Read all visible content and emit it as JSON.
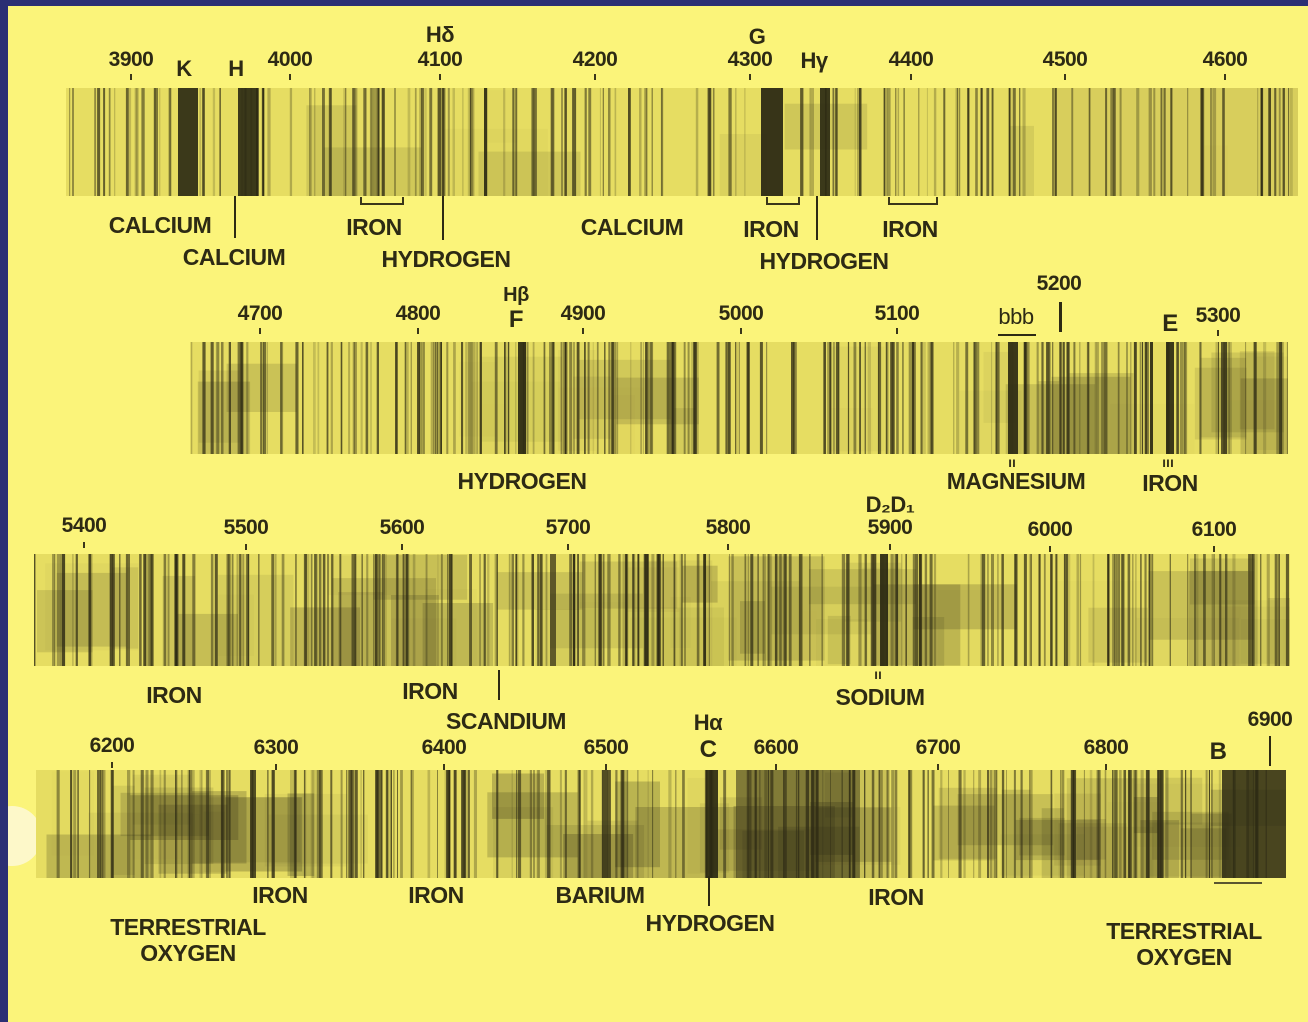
{
  "colors": {
    "frame": "#2b2f74",
    "paper": "#fbf47a",
    "strip_base": "#e6dd62",
    "ink": "#2d2a14"
  },
  "rows": [
    {
      "wavelengths": [
        "3900",
        "4000",
        "4100",
        "4200",
        "4300",
        "4400",
        "4500",
        "4600"
      ],
      "line_labels": {
        "K": "K",
        "H": "H",
        "Hd": "Hδ",
        "G": "G",
        "Hg": "Hγ"
      },
      "elements": {
        "calcium_1": "CALCIUM",
        "calcium_2": "CALCIUM",
        "iron_1": "IRON",
        "hydrogen_1": "HYDROGEN",
        "calcium_3": "CALCIUM",
        "iron_2": "IRON",
        "hydrogen_2": "HYDROGEN",
        "iron_3": "IRON"
      }
    },
    {
      "wavelengths": [
        "4700",
        "4800",
        "4900",
        "5000",
        "5100",
        "5200",
        "5300"
      ],
      "line_labels": {
        "Hb": "Hβ",
        "F": "F",
        "bbb": "bbb",
        "E": "E"
      },
      "elements": {
        "hydrogen": "HYDROGEN",
        "magnesium": "MAGNESIUM",
        "iron": "IRON"
      }
    },
    {
      "wavelengths": [
        "5400",
        "5500",
        "5600",
        "5700",
        "5800",
        "5900",
        "6000",
        "6100"
      ],
      "line_labels": {
        "D": "D₂D₁"
      },
      "elements": {
        "iron_1": "IRON",
        "iron_2": "IRON",
        "scandium": "SCANDIUM",
        "sodium": "SODIUM"
      }
    },
    {
      "wavelengths": [
        "6200",
        "6300",
        "6400",
        "6500",
        "6600",
        "6700",
        "6800",
        "6900"
      ],
      "line_labels": {
        "Ha": "Hα",
        "C": "C",
        "B": "B"
      },
      "elements": {
        "iron_1": "IRON",
        "iron_2": "IRON",
        "barium": "BARIUM",
        "hydrogen": "HYDROGEN",
        "iron_3": "IRON",
        "terrestrial_1": "TERRESTRIAL",
        "oxygen_1": "OXYGEN",
        "terrestrial_2": "TERRESTRIAL",
        "oxygen_2": "OXYGEN"
      }
    }
  ]
}
